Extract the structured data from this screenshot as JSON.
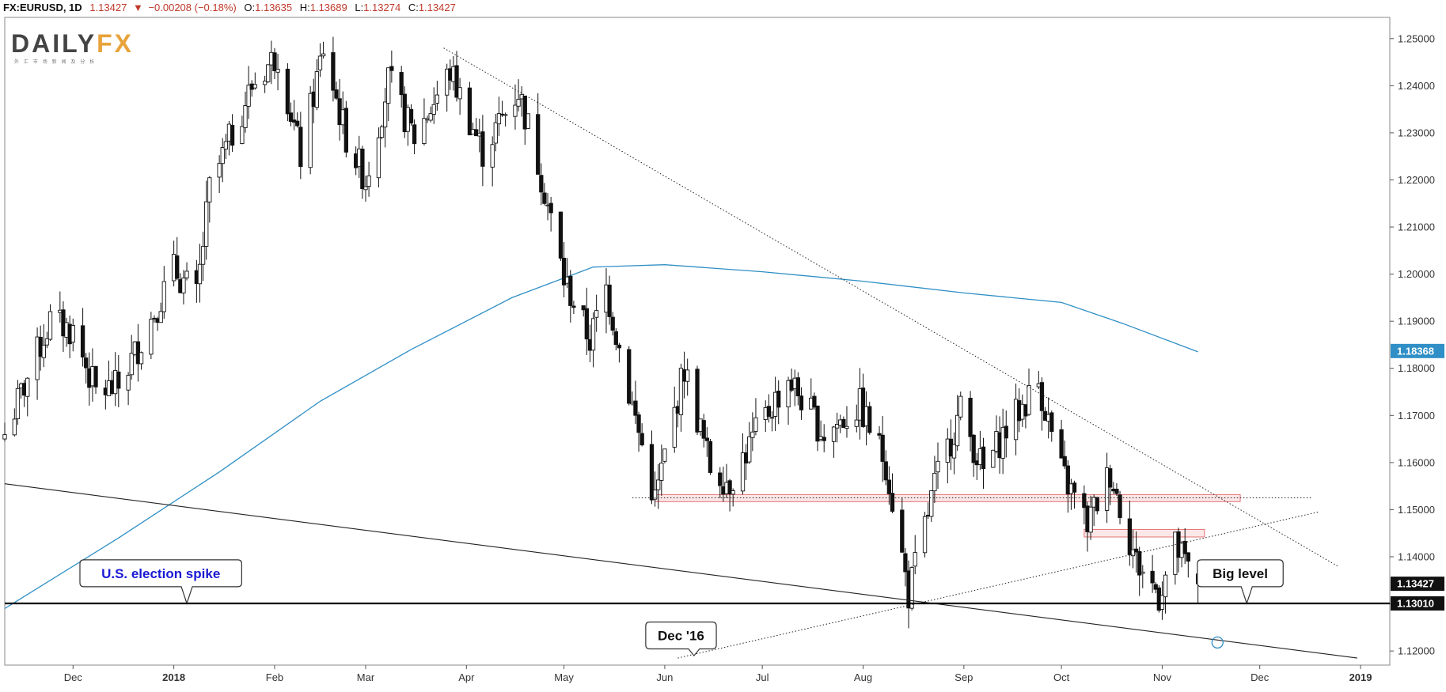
{
  "header": {
    "symbol": "FX:EURUSD, 1D",
    "last": "1.13427",
    "change": "−0.00208 (−0.18%)",
    "open_label": "O:",
    "open": "1.13635",
    "high_label": "H:",
    "high": "1.13689",
    "low_label": "L:",
    "low": "1.13274",
    "close_label": "C:",
    "close": "1.13427"
  },
  "logo": {
    "text_left": "DAILY",
    "text_right": "FX",
    "tagline": "外 汇 市 场 新 闻 及 分 析"
  },
  "colors": {
    "down_arrow": "#c0392b",
    "value_red": "#c0392b",
    "ma": "#2f8fc6",
    "zone": "#e57373",
    "logo_dark": "#444444",
    "logo_accent": "#e8a33b"
  },
  "chart_data": {
    "type": "candlestick",
    "y_min": 1.117,
    "y_max": 1.2545,
    "x_start": "2017-11-10",
    "x_end": "2019-01-10",
    "y_ticks": [
      "1.25000",
      "1.24000",
      "1.23000",
      "1.22000",
      "1.21000",
      "1.20000",
      "1.19000",
      "1.18000",
      "1.17000",
      "1.16000",
      "1.15000",
      "1.14000",
      "1.13000",
      "1.12000"
    ],
    "x_ticks": [
      {
        "label": "Dec",
        "date": "2017-12-01"
      },
      {
        "label": "2018",
        "date": "2018-01-01",
        "bold": true
      },
      {
        "label": "Feb",
        "date": "2018-02-01"
      },
      {
        "label": "Mar",
        "date": "2018-03-01"
      },
      {
        "label": "Apr",
        "date": "2018-04-01"
      },
      {
        "label": "May",
        "date": "2018-05-01"
      },
      {
        "label": "Jun",
        "date": "2018-06-01"
      },
      {
        "label": "Jul",
        "date": "2018-07-01"
      },
      {
        "label": "Aug",
        "date": "2018-08-01"
      },
      {
        "label": "Sep",
        "date": "2018-09-01"
      },
      {
        "label": "Oct",
        "date": "2018-10-01"
      },
      {
        "label": "Nov",
        "date": "2018-11-01"
      },
      {
        "label": "Dec",
        "date": "2018-12-01"
      },
      {
        "label": "2019",
        "date": "2019-01-01",
        "bold": true
      }
    ],
    "price_labels": [
      {
        "value": 1.18368,
        "text": "1.18368",
        "color": "#2f8fc6"
      },
      {
        "value": 1.13427,
        "text": "1.13427",
        "color": "#111111"
      },
      {
        "value": 1.1301,
        "text": "1.13010",
        "color": "#111111"
      }
    ],
    "anchors": [
      {
        "date": "2017-11-10",
        "price": 1.166
      },
      {
        "date": "2017-11-17",
        "price": 1.178
      },
      {
        "date": "2017-11-24",
        "price": 1.19
      },
      {
        "date": "2017-12-01",
        "price": 1.188
      },
      {
        "date": "2017-12-08",
        "price": 1.175
      },
      {
        "date": "2017-12-15",
        "price": 1.176
      },
      {
        "date": "2017-12-22",
        "price": 1.186
      },
      {
        "date": "2018-01-01",
        "price": 1.201
      },
      {
        "date": "2018-01-08",
        "price": 1.195
      },
      {
        "date": "2018-01-12",
        "price": 1.218
      },
      {
        "date": "2018-01-25",
        "price": 1.24
      },
      {
        "date": "2018-02-02",
        "price": 1.247
      },
      {
        "date": "2018-02-09",
        "price": 1.225
      },
      {
        "date": "2018-02-16",
        "price": 1.248
      },
      {
        "date": "2018-02-23",
        "price": 1.229
      },
      {
        "date": "2018-03-01",
        "price": 1.22
      },
      {
        "date": "2018-03-08",
        "price": 1.241
      },
      {
        "date": "2018-03-16",
        "price": 1.229
      },
      {
        "date": "2018-03-27",
        "price": 1.243
      },
      {
        "date": "2018-04-06",
        "price": 1.226
      },
      {
        "date": "2018-04-17",
        "price": 1.239
      },
      {
        "date": "2018-04-24",
        "price": 1.221
      },
      {
        "date": "2018-05-01",
        "price": 1.199
      },
      {
        "date": "2018-05-09",
        "price": 1.186
      },
      {
        "date": "2018-05-14",
        "price": 1.197
      },
      {
        "date": "2018-05-21",
        "price": 1.175
      },
      {
        "date": "2018-05-29",
        "price": 1.152
      },
      {
        "date": "2018-06-07",
        "price": 1.18
      },
      {
        "date": "2018-06-15",
        "price": 1.159
      },
      {
        "date": "2018-06-21",
        "price": 1.156
      },
      {
        "date": "2018-07-03",
        "price": 1.171
      },
      {
        "date": "2018-07-09",
        "price": 1.178
      },
      {
        "date": "2018-07-20",
        "price": 1.166
      },
      {
        "date": "2018-07-31",
        "price": 1.172
      },
      {
        "date": "2018-08-08",
        "price": 1.16
      },
      {
        "date": "2018-08-15",
        "price": 1.132
      },
      {
        "date": "2018-08-23",
        "price": 1.155
      },
      {
        "date": "2018-08-31",
        "price": 1.171
      },
      {
        "date": "2018-09-07",
        "price": 1.158
      },
      {
        "date": "2018-09-13",
        "price": 1.166
      },
      {
        "date": "2018-09-24",
        "price": 1.177
      },
      {
        "date": "2018-10-01",
        "price": 1.158
      },
      {
        "date": "2018-10-09",
        "price": 1.147
      },
      {
        "date": "2018-10-16",
        "price": 1.158
      },
      {
        "date": "2018-10-24",
        "price": 1.139
      },
      {
        "date": "2018-10-31",
        "price": 1.132
      },
      {
        "date": "2018-11-05",
        "price": 1.142
      },
      {
        "date": "2018-11-12",
        "price": 1.134
      }
    ],
    "ma_200": [
      {
        "date": "2017-11-10",
        "price": 1.129
      },
      {
        "date": "2017-12-15",
        "price": 1.144
      },
      {
        "date": "2018-01-15",
        "price": 1.158
      },
      {
        "date": "2018-02-15",
        "price": 1.173
      },
      {
        "date": "2018-03-15",
        "price": 1.184
      },
      {
        "date": "2018-04-15",
        "price": 1.195
      },
      {
        "date": "2018-05-10",
        "price": 1.2015
      },
      {
        "date": "2018-06-01",
        "price": 1.202
      },
      {
        "date": "2018-07-01",
        "price": 1.2005
      },
      {
        "date": "2018-08-01",
        "price": 1.1985
      },
      {
        "date": "2018-09-01",
        "price": 1.196
      },
      {
        "date": "2018-10-01",
        "price": 1.194
      },
      {
        "date": "2018-10-20",
        "price": 1.1895
      },
      {
        "date": "2018-11-12",
        "price": 1.1835
      }
    ],
    "lines": [
      {
        "name": "downtrend-upper",
        "style": "dotted",
        "from": {
          "date": "2018-03-25",
          "price": 1.248
        },
        "to": {
          "date": "2018-12-25",
          "price": 1.138
        }
      },
      {
        "name": "support-lower",
        "style": "solid",
        "from": {
          "date": "2017-11-10",
          "price": 1.1555
        },
        "to": {
          "date": "2018-12-31",
          "price": 1.1185
        }
      },
      {
        "name": "uptrend-dotted",
        "style": "dotted",
        "from": {
          "date": "2018-06-05",
          "price": 1.1185
        },
        "to": {
          "date": "2018-12-19",
          "price": 1.1495
        }
      },
      {
        "name": "resistance-dotted",
        "style": "dotted",
        "from": {
          "date": "2018-05-22",
          "price": 1.1525
        },
        "to": {
          "date": "2018-12-17",
          "price": 1.1525
        }
      },
      {
        "name": "big-level",
        "style": "solid-bold",
        "from": {
          "date": "2017-11-10",
          "price": 1.1301
        },
        "to": {
          "date": "2019-01-10",
          "price": 1.1301
        }
      }
    ],
    "zones": [
      {
        "name": "resistance-zone",
        "from": "2018-05-29",
        "to": "2018-11-25",
        "low": 1.1517,
        "high": 1.1532
      },
      {
        "name": "resistance-zone-small",
        "from": "2018-10-08",
        "to": "2018-11-14",
        "low": 1.1442,
        "high": 1.1458
      }
    ],
    "callouts": [
      {
        "name": "election-callout",
        "text": "U.S. election spike",
        "color": "#1a1ad4",
        "cx_date": "2017-12-28",
        "cy_price": 1.1365,
        "pointer_date": "2018-01-05",
        "pointer_price": 1.1301
      },
      {
        "name": "dec16-callout",
        "text": "Dec '16",
        "color": "#111111",
        "cx_date": "2018-06-06",
        "cy_price": 1.1233,
        "pointer_date": "2018-06-10",
        "pointer_price": 1.119
      },
      {
        "name": "big-level-callout",
        "text": "Big level",
        "color": "#111111",
        "cx_date": "2018-11-25",
        "cy_price": 1.1365,
        "pointer_date": "2018-11-27",
        "pointer_price": 1.1301
      }
    ],
    "markers": [
      {
        "name": "circle-marker",
        "date": "2018-11-18",
        "price": 1.1218
      }
    ]
  }
}
